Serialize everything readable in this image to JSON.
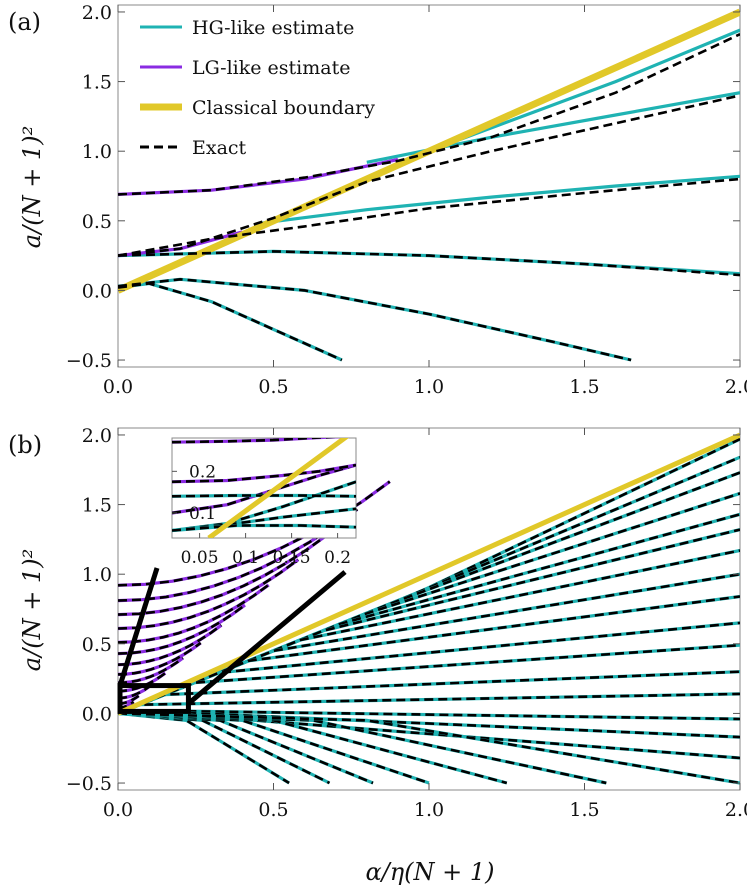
{
  "colors": {
    "hg": "#1fb3b3",
    "lg": "#8a2be2",
    "classical": "#e1c829",
    "exact": "#000000"
  },
  "chart_data": [
    {
      "panel": "(a)",
      "type": "line",
      "xlabel": "α/η(N + 1)",
      "ylabel": "a/(N + 1)²",
      "xlim": [
        0.0,
        2.0
      ],
      "ylim": [
        -0.55,
        2.05
      ],
      "xticks": [
        "0.0",
        "0.5",
        "1.0",
        "1.5",
        "2.0"
      ],
      "yticks": [
        "−0.5",
        "0.0",
        "0.5",
        "1.0",
        "1.5",
        "2.0"
      ],
      "legend": [
        "HG-like estimate",
        "LG-like estimate",
        "Classical boundary",
        "Exact"
      ],
      "legend_position": "top-left",
      "series": [
        {
          "name": "HG-like estimate",
          "segments": [
            {
              "x": [
                0.95,
                1.3,
                1.6,
                2.0
              ],
              "y": [
                0.96,
                1.25,
                1.5,
                1.87
              ]
            },
            {
              "x": [
                0.8,
                1.2,
                1.6,
                2.0
              ],
              "y": [
                0.92,
                1.1,
                1.26,
                1.42
              ]
            },
            {
              "x": [
                0.45,
                0.8,
                1.2,
                1.6,
                2.0
              ],
              "y": [
                0.48,
                0.58,
                0.67,
                0.75,
                0.82
              ]
            },
            {
              "x": [
                0.0,
                0.5,
                1.0,
                1.5,
                2.0
              ],
              "y": [
                0.25,
                0.28,
                0.25,
                0.19,
                0.12
              ]
            },
            {
              "x": [
                0.0,
                0.2,
                0.6,
                1.0,
                1.4,
                1.65
              ],
              "y": [
                0.03,
                0.08,
                0.0,
                -0.17,
                -0.37,
                -0.5
              ]
            },
            {
              "x": [
                0.0,
                0.1,
                0.3,
                0.5,
                0.72
              ],
              "y": [
                0.02,
                0.05,
                -0.08,
                -0.28,
                -0.5
              ]
            }
          ]
        },
        {
          "name": "LG-like estimate",
          "segments": [
            {
              "x": [
                0.0,
                0.3,
                0.6,
                0.9
              ],
              "y": [
                0.69,
                0.72,
                0.8,
                0.94
              ]
            },
            {
              "x": [
                0.0,
                0.2,
                0.4
              ],
              "y": [
                0.25,
                0.3,
                0.42
              ]
            }
          ]
        },
        {
          "name": "Classical boundary",
          "segments": [
            {
              "x": [
                0.0,
                2.0
              ],
              "y": [
                0.0,
                2.0
              ]
            }
          ]
        },
        {
          "name": "Exact",
          "segments": [
            {
              "x": [
                0.0,
                0.3,
                0.6,
                0.9,
                1.2,
                1.6,
                2.0
              ],
              "y": [
                0.69,
                0.72,
                0.81,
                0.93,
                1.1,
                1.42,
                1.84
              ]
            },
            {
              "x": [
                0.0,
                0.2,
                0.5,
                0.8,
                1.2,
                1.6,
                2.0
              ],
              "y": [
                0.25,
                0.3,
                0.52,
                0.78,
                1.0,
                1.2,
                1.4
              ]
            },
            {
              "x": [
                0.0,
                0.3,
                0.6,
                1.0,
                1.5,
                2.0
              ],
              "y": [
                0.25,
                0.37,
                0.46,
                0.59,
                0.7,
                0.8
              ]
            },
            {
              "x": [
                0.0,
                0.5,
                1.0,
                1.5,
                2.0
              ],
              "y": [
                0.25,
                0.28,
                0.25,
                0.19,
                0.11
              ]
            },
            {
              "x": [
                0.0,
                0.2,
                0.6,
                1.0,
                1.4,
                1.65
              ],
              "y": [
                0.03,
                0.08,
                0.0,
                -0.17,
                -0.37,
                -0.5
              ]
            },
            {
              "x": [
                0.0,
                0.1,
                0.3,
                0.5,
                0.72
              ],
              "y": [
                0.02,
                0.05,
                -0.08,
                -0.28,
                -0.5
              ]
            }
          ]
        }
      ]
    },
    {
      "panel": "(b)",
      "type": "line",
      "xlabel": "α/η(N + 1)",
      "ylabel": "a/(N + 1)²",
      "xlim": [
        0.0,
        2.0
      ],
      "ylim": [
        -0.55,
        2.05
      ],
      "xticks": [
        "0.0",
        "0.5",
        "1.0",
        "1.5",
        "2.0"
      ],
      "yticks": [
        "−0.5",
        "0.0",
        "0.5",
        "1.0",
        "1.5",
        "2.0"
      ],
      "classical_boundary": {
        "x": [
          0.0,
          2.0
        ],
        "y": [
          0.0,
          2.0
        ]
      },
      "fan_starts": [
        0.92,
        0.81,
        0.71,
        0.61,
        0.51,
        0.43,
        0.35,
        0.28,
        0.22,
        0.16,
        0.11,
        0.07,
        0.04,
        0.02
      ],
      "fan_ends_at_x2": [
        1.97,
        1.84,
        1.73,
        1.58,
        1.43,
        1.32,
        1.17,
        1.0,
        0.84,
        0.65,
        0.49,
        0.3,
        0.14,
        -0.04,
        -0.17,
        -0.32
      ],
      "fan_ends_negative": [
        {
          "x": 0.55,
          "y": -0.5
        },
        {
          "x": 0.68,
          "y": -0.5
        },
        {
          "x": 0.82,
          "y": -0.5
        },
        {
          "x": 1.0,
          "y": -0.5
        },
        {
          "x": 1.25,
          "y": -0.5
        },
        {
          "x": 1.57,
          "y": -0.5
        },
        {
          "x": 2.0,
          "y": -0.5
        }
      ],
      "zoom_box": {
        "x": [
          0.0,
          0.22
        ],
        "y": [
          0.0,
          0.2
        ]
      },
      "inset": {
        "xlim": [
          0.02,
          0.22
        ],
        "ylim": [
          0.04,
          0.28
        ],
        "xticks": [
          "0.05",
          "0.1",
          "0.15",
          "0.2"
        ],
        "yticks": [
          "0.1",
          "0.2"
        ]
      }
    }
  ]
}
